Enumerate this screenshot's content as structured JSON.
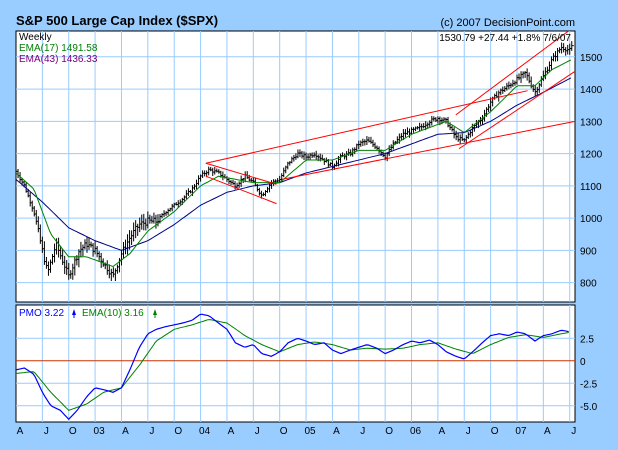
{
  "header": {
    "title": "S&P 500 Large Cap Index ($SPX)",
    "copyright": "(c) 2007 DecisionPoint.com"
  },
  "price_panel": {
    "period_label": "Weekly",
    "ema_fast_label": "EMA(17) 1491.58",
    "ema_slow_label": "EMA(43) 1436.33",
    "quote_label": "1530.79  +27.44  +1.8%   7/6/07"
  },
  "pmo_panel": {
    "pmo_label": "PMO  3.22",
    "pmo_ema_label": "EMA(10)  3.16"
  },
  "colors": {
    "frame": "#99ccff",
    "panel_bg": "#ffffff",
    "price_bar": "#000000",
    "ema_fast": "#008000",
    "ema_slow": "#000080",
    "channel": "#ff0000",
    "pmo": "#0000ff",
    "pmo_ema": "#008000",
    "zero_line": "#cc3300",
    "grid": "#99ccff",
    "title_ema_fast": "#008000",
    "title_ema_slow": "#800080"
  },
  "chart_data": [
    {
      "type": "line",
      "variant": "ohlc-bars",
      "title": "S&P 500 Large Cap Index ($SPX)",
      "x_ticks": [
        "A",
        "J",
        "O",
        "03",
        "A",
        "J",
        "O",
        "04",
        "A",
        "J",
        "O",
        "05",
        "A",
        "J",
        "O",
        "06",
        "A",
        "J",
        "O",
        "07",
        "A",
        "J"
      ],
      "x_range": [
        2002.25,
        2007.55
      ],
      "y_ticks": [
        800,
        900,
        1000,
        1100,
        1200,
        1300,
        1400,
        1500
      ],
      "ylim": [
        740,
        1580
      ],
      "grid": true,
      "price_anchors": [
        [
          2002.25,
          1145
        ],
        [
          2002.33,
          1100
        ],
        [
          2002.42,
          1020
        ],
        [
          2002.5,
          900
        ],
        [
          2002.55,
          830
        ],
        [
          2002.63,
          920
        ],
        [
          2002.75,
          820
        ],
        [
          2002.85,
          900
        ],
        [
          2002.92,
          920
        ],
        [
          2003.0,
          900
        ],
        [
          2003.08,
          860
        ],
        [
          2003.17,
          820
        ],
        [
          2003.25,
          890
        ],
        [
          2003.33,
          940
        ],
        [
          2003.42,
          980
        ],
        [
          2003.5,
          990
        ],
        [
          2003.58,
          990
        ],
        [
          2003.67,
          1020
        ],
        [
          2003.75,
          1040
        ],
        [
          2003.83,
          1060
        ],
        [
          2003.92,
          1090
        ],
        [
          2004.0,
          1130
        ],
        [
          2004.08,
          1150
        ],
        [
          2004.17,
          1140
        ],
        [
          2004.25,
          1120
        ],
        [
          2004.33,
          1100
        ],
        [
          2004.42,
          1130
        ],
        [
          2004.5,
          1110
        ],
        [
          2004.58,
          1070
        ],
        [
          2004.67,
          1110
        ],
        [
          2004.75,
          1120
        ],
        [
          2004.83,
          1170
        ],
        [
          2004.92,
          1200
        ],
        [
          2005.0,
          1190
        ],
        [
          2005.08,
          1200
        ],
        [
          2005.17,
          1180
        ],
        [
          2005.25,
          1160
        ],
        [
          2005.33,
          1190
        ],
        [
          2005.42,
          1200
        ],
        [
          2005.5,
          1230
        ],
        [
          2005.58,
          1240
        ],
        [
          2005.67,
          1220
        ],
        [
          2005.75,
          1190
        ],
        [
          2005.83,
          1230
        ],
        [
          2005.92,
          1260
        ],
        [
          2006.0,
          1270
        ],
        [
          2006.08,
          1280
        ],
        [
          2006.17,
          1300
        ],
        [
          2006.25,
          1310
        ],
        [
          2006.33,
          1300
        ],
        [
          2006.42,
          1250
        ],
        [
          2006.5,
          1240
        ],
        [
          2006.58,
          1280
        ],
        [
          2006.67,
          1310
        ],
        [
          2006.75,
          1360
        ],
        [
          2006.83,
          1390
        ],
        [
          2006.92,
          1410
        ],
        [
          2007.0,
          1430
        ],
        [
          2007.08,
          1450
        ],
        [
          2007.17,
          1390
        ],
        [
          2007.25,
          1440
        ],
        [
          2007.33,
          1490
        ],
        [
          2007.42,
          1530
        ],
        [
          2007.5,
          1520
        ],
        [
          2007.52,
          1531
        ]
      ],
      "ema_fast_anchors": [
        [
          2002.25,
          1140
        ],
        [
          2002.42,
          1090
        ],
        [
          2002.58,
          950
        ],
        [
          2002.75,
          880
        ],
        [
          2002.92,
          880
        ],
        [
          2003.17,
          850
        ],
        [
          2003.33,
          890
        ],
        [
          2003.5,
          960
        ],
        [
          2003.75,
          1020
        ],
        [
          2004.0,
          1100
        ],
        [
          2004.17,
          1130
        ],
        [
          2004.5,
          1110
        ],
        [
          2004.75,
          1110
        ],
        [
          2005.0,
          1180
        ],
        [
          2005.25,
          1180
        ],
        [
          2005.5,
          1210
        ],
        [
          2005.75,
          1210
        ],
        [
          2006.0,
          1260
        ],
        [
          2006.33,
          1300
        ],
        [
          2006.5,
          1265
        ],
        [
          2006.75,
          1330
        ],
        [
          2007.0,
          1410
        ],
        [
          2007.17,
          1410
        ],
        [
          2007.33,
          1460
        ],
        [
          2007.52,
          1492
        ]
      ],
      "ema_slow_anchors": [
        [
          2002.25,
          1120
        ],
        [
          2002.5,
          1050
        ],
        [
          2002.75,
          970
        ],
        [
          2003.0,
          930
        ],
        [
          2003.25,
          900
        ],
        [
          2003.5,
          930
        ],
        [
          2003.75,
          980
        ],
        [
          2004.0,
          1040
        ],
        [
          2004.25,
          1080
        ],
        [
          2004.5,
          1100
        ],
        [
          2004.75,
          1110
        ],
        [
          2005.0,
          1140
        ],
        [
          2005.25,
          1160
        ],
        [
          2005.5,
          1180
        ],
        [
          2005.75,
          1200
        ],
        [
          2006.0,
          1230
        ],
        [
          2006.25,
          1260
        ],
        [
          2006.5,
          1265
        ],
        [
          2006.75,
          1300
        ],
        [
          2007.0,
          1350
        ],
        [
          2007.25,
          1390
        ],
        [
          2007.52,
          1436
        ]
      ],
      "channel_lines": [
        [
          [
            2004.05,
            1170
          ],
          [
            2004.72,
            1105
          ]
        ],
        [
          [
            2004.05,
            1130
          ],
          [
            2004.72,
            1045
          ]
        ],
        [
          [
            2004.05,
            1170
          ],
          [
            2007.1,
            1395
          ]
        ],
        [
          [
            2004.77,
            1120
          ],
          [
            2007.55,
            1300
          ]
        ],
        [
          [
            2006.42,
            1320
          ],
          [
            2007.55,
            1595
          ]
        ],
        [
          [
            2006.45,
            1215
          ],
          [
            2007.55,
            1455
          ]
        ]
      ]
    },
    {
      "type": "line",
      "title": "PMO",
      "y_ticks": [
        -5.0,
        -2.5,
        0,
        2.5
      ],
      "ylim": [
        -6.8,
        6.2
      ],
      "zero_line": 0,
      "series": [
        {
          "name": "PMO",
          "anchors": [
            [
              2002.25,
              -1.0
            ],
            [
              2002.33,
              -0.8
            ],
            [
              2002.42,
              -1.5
            ],
            [
              2002.5,
              -3.5
            ],
            [
              2002.58,
              -5.0
            ],
            [
              2002.67,
              -5.5
            ],
            [
              2002.75,
              -6.5
            ],
            [
              2002.83,
              -5.5
            ],
            [
              2002.92,
              -4.0
            ],
            [
              2003.0,
              -3.0
            ],
            [
              2003.08,
              -3.2
            ],
            [
              2003.17,
              -3.5
            ],
            [
              2003.25,
              -3.0
            ],
            [
              2003.33,
              -1.0
            ],
            [
              2003.42,
              1.5
            ],
            [
              2003.5,
              3.0
            ],
            [
              2003.58,
              3.5
            ],
            [
              2003.67,
              3.8
            ],
            [
              2003.75,
              4.0
            ],
            [
              2003.83,
              4.2
            ],
            [
              2003.92,
              4.5
            ],
            [
              2004.0,
              5.2
            ],
            [
              2004.08,
              5.0
            ],
            [
              2004.17,
              4.2
            ],
            [
              2004.25,
              3.5
            ],
            [
              2004.33,
              2.0
            ],
            [
              2004.42,
              1.5
            ],
            [
              2004.5,
              1.8
            ],
            [
              2004.58,
              0.8
            ],
            [
              2004.67,
              0.5
            ],
            [
              2004.75,
              1.0
            ],
            [
              2004.83,
              2.0
            ],
            [
              2004.92,
              2.5
            ],
            [
              2005.0,
              2.2
            ],
            [
              2005.08,
              1.8
            ],
            [
              2005.17,
              2.0
            ],
            [
              2005.25,
              1.2
            ],
            [
              2005.33,
              0.8
            ],
            [
              2005.42,
              1.2
            ],
            [
              2005.5,
              1.5
            ],
            [
              2005.58,
              1.8
            ],
            [
              2005.67,
              1.4
            ],
            [
              2005.75,
              0.8
            ],
            [
              2005.83,
              1.2
            ],
            [
              2005.92,
              1.8
            ],
            [
              2006.0,
              2.2
            ],
            [
              2006.08,
              2.0
            ],
            [
              2006.17,
              2.3
            ],
            [
              2006.25,
              1.8
            ],
            [
              2006.33,
              1.0
            ],
            [
              2006.42,
              0.5
            ],
            [
              2006.5,
              0.2
            ],
            [
              2006.58,
              1.0
            ],
            [
              2006.67,
              2.0
            ],
            [
              2006.75,
              2.8
            ],
            [
              2006.83,
              3.0
            ],
            [
              2006.92,
              2.8
            ],
            [
              2007.0,
              3.2
            ],
            [
              2007.08,
              3.0
            ],
            [
              2007.17,
              2.2
            ],
            [
              2007.25,
              2.8
            ],
            [
              2007.33,
              3.0
            ],
            [
              2007.42,
              3.4
            ],
            [
              2007.5,
              3.22
            ]
          ]
        },
        {
          "name": "EMA(10)",
          "anchors": [
            [
              2002.25,
              -1.4
            ],
            [
              2002.42,
              -1.2
            ],
            [
              2002.58,
              -3.5
            ],
            [
              2002.75,
              -5.5
            ],
            [
              2002.92,
              -4.8
            ],
            [
              2003.08,
              -3.5
            ],
            [
              2003.25,
              -3.0
            ],
            [
              2003.42,
              -0.5
            ],
            [
              2003.58,
              2.2
            ],
            [
              2003.75,
              3.5
            ],
            [
              2003.92,
              4.0
            ],
            [
              2004.08,
              4.6
            ],
            [
              2004.25,
              4.2
            ],
            [
              2004.42,
              2.8
            ],
            [
              2004.58,
              1.8
            ],
            [
              2004.75,
              1.0
            ],
            [
              2004.92,
              1.8
            ],
            [
              2005.08,
              2.1
            ],
            [
              2005.25,
              1.8
            ],
            [
              2005.42,
              1.2
            ],
            [
              2005.58,
              1.4
            ],
            [
              2005.75,
              1.3
            ],
            [
              2005.92,
              1.4
            ],
            [
              2006.08,
              1.8
            ],
            [
              2006.25,
              2.0
            ],
            [
              2006.42,
              1.3
            ],
            [
              2006.58,
              0.8
            ],
            [
              2006.75,
              1.8
            ],
            [
              2006.92,
              2.6
            ],
            [
              2007.08,
              2.9
            ],
            [
              2007.25,
              2.6
            ],
            [
              2007.42,
              3.0
            ],
            [
              2007.5,
              3.16
            ]
          ]
        }
      ]
    }
  ]
}
